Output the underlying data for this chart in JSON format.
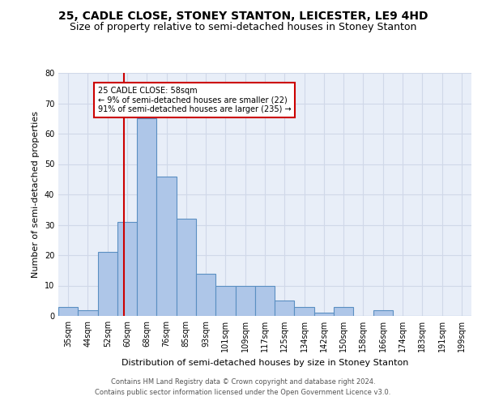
{
  "title": "25, CADLE CLOSE, STONEY STANTON, LEICESTER, LE9 4HD",
  "subtitle": "Size of property relative to semi-detached houses in Stoney Stanton",
  "xlabel": "Distribution of semi-detached houses by size in Stoney Stanton",
  "ylabel": "Number of semi-detached properties",
  "bar_labels": [
    "35sqm",
    "44sqm",
    "52sqm",
    "60sqm",
    "68sqm",
    "76sqm",
    "85sqm",
    "93sqm",
    "101sqm",
    "109sqm",
    "117sqm",
    "125sqm",
    "134sqm",
    "142sqm",
    "150sqm",
    "158sqm",
    "166sqm",
    "174sqm",
    "183sqm",
    "191sqm",
    "199sqm"
  ],
  "bar_values": [
    3,
    2,
    21,
    31,
    65,
    46,
    32,
    14,
    10,
    10,
    10,
    5,
    3,
    1,
    3,
    0,
    2,
    0,
    0,
    0,
    0
  ],
  "bar_color": "#aec6e8",
  "bar_edge_color": "#5a8fc2",
  "annotation_title": "25 CADLE CLOSE: 58sqm",
  "annotation_line1": "← 9% of semi-detached houses are smaller (22)",
  "annotation_line2": "91% of semi-detached houses are larger (235) →",
  "annotation_box_color": "#ffffff",
  "annotation_box_edge_color": "#cc0000",
  "vline_color": "#cc0000",
  "vline_x": 2.85,
  "ylim": [
    0,
    80
  ],
  "yticks": [
    0,
    10,
    20,
    30,
    40,
    50,
    60,
    70,
    80
  ],
  "grid_color": "#d0d8e8",
  "background_color": "#e8eef8",
  "footer1": "Contains HM Land Registry data © Crown copyright and database right 2024.",
  "footer2": "Contains public sector information licensed under the Open Government Licence v3.0.",
  "title_fontsize": 10,
  "subtitle_fontsize": 9,
  "ylabel_fontsize": 8,
  "xlabel_fontsize": 8,
  "tick_fontsize": 7,
  "annotation_fontsize": 7,
  "footer_fontsize": 6
}
